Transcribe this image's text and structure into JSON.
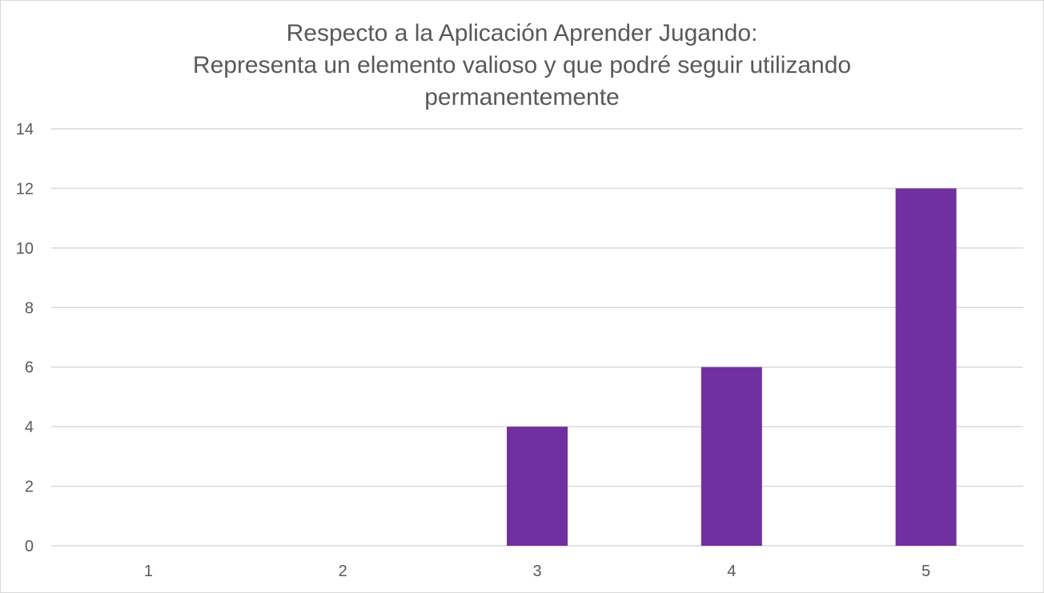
{
  "chart_data": {
    "type": "bar",
    "title_lines": [
      "Respecto a la Aplicación Aprender Jugando:",
      "Representa un elemento valioso y que podré seguir utilizando",
      "permanentemente"
    ],
    "categories": [
      "1",
      "2",
      "3",
      "4",
      "5"
    ],
    "values": [
      0,
      0,
      4,
      6,
      12
    ],
    "xlabel": "",
    "ylabel": "",
    "ylim": [
      0,
      14
    ],
    "yticks": [
      0,
      2,
      4,
      6,
      8,
      10,
      12,
      14
    ],
    "grid": true,
    "legend": "none",
    "bar_color": "#7030A0",
    "grid_color": "#d9d9d9",
    "text_color": "#595959"
  }
}
